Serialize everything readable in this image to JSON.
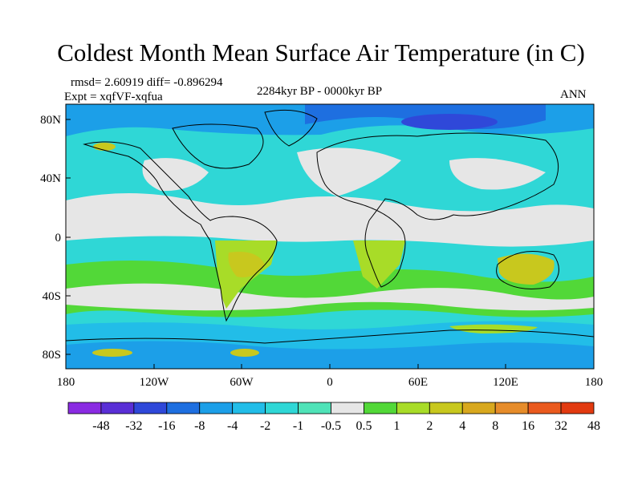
{
  "title": "Coldest Month Mean Surface Air Temperature (in C)",
  "stats": {
    "rmsd_diff": "rmsd= 2.60919 diff= -0.896294",
    "expt": "Expt = xqfVF-xqfua",
    "period": "2284kyr BP - 0000kyr BP",
    "season": "ANN"
  },
  "lat_labels": [
    "80N",
    "40N",
    "0",
    "40S",
    "80S"
  ],
  "lon_labels": [
    "180",
    "120W",
    "60W",
    "0",
    "60E",
    "120E",
    "180"
  ],
  "colorbar": {
    "labels": [
      "-48",
      "-32",
      "-16",
      "-8",
      "-4",
      "-2",
      "-1",
      "-0.5",
      "0.5",
      "1",
      "2",
      "4",
      "8",
      "16",
      "32",
      "48"
    ],
    "colors": [
      "#8a2be2",
      "#5a2fd6",
      "#2f48d9",
      "#1e6fe0",
      "#1c9fe8",
      "#22bde8",
      "#2fd7d6",
      "#4fe3b8",
      "#e6e6e6",
      "#52d838",
      "#a8dc28",
      "#c8c81e",
      "#d8a81e",
      "#e68c2a",
      "#ea5a1e",
      "#e23a10"
    ]
  },
  "palette": {
    "white": "#e6e6e6",
    "light_cyan": "#4fe3b8",
    "cyan": "#2fd7d6",
    "sky": "#22bde8",
    "blue": "#1e6fe0",
    "deep_blue": "#2f48d9",
    "green": "#52d838",
    "yellow_green": "#a8dc28",
    "olive": "#c8c81e",
    "orange": "#d8a81e"
  }
}
